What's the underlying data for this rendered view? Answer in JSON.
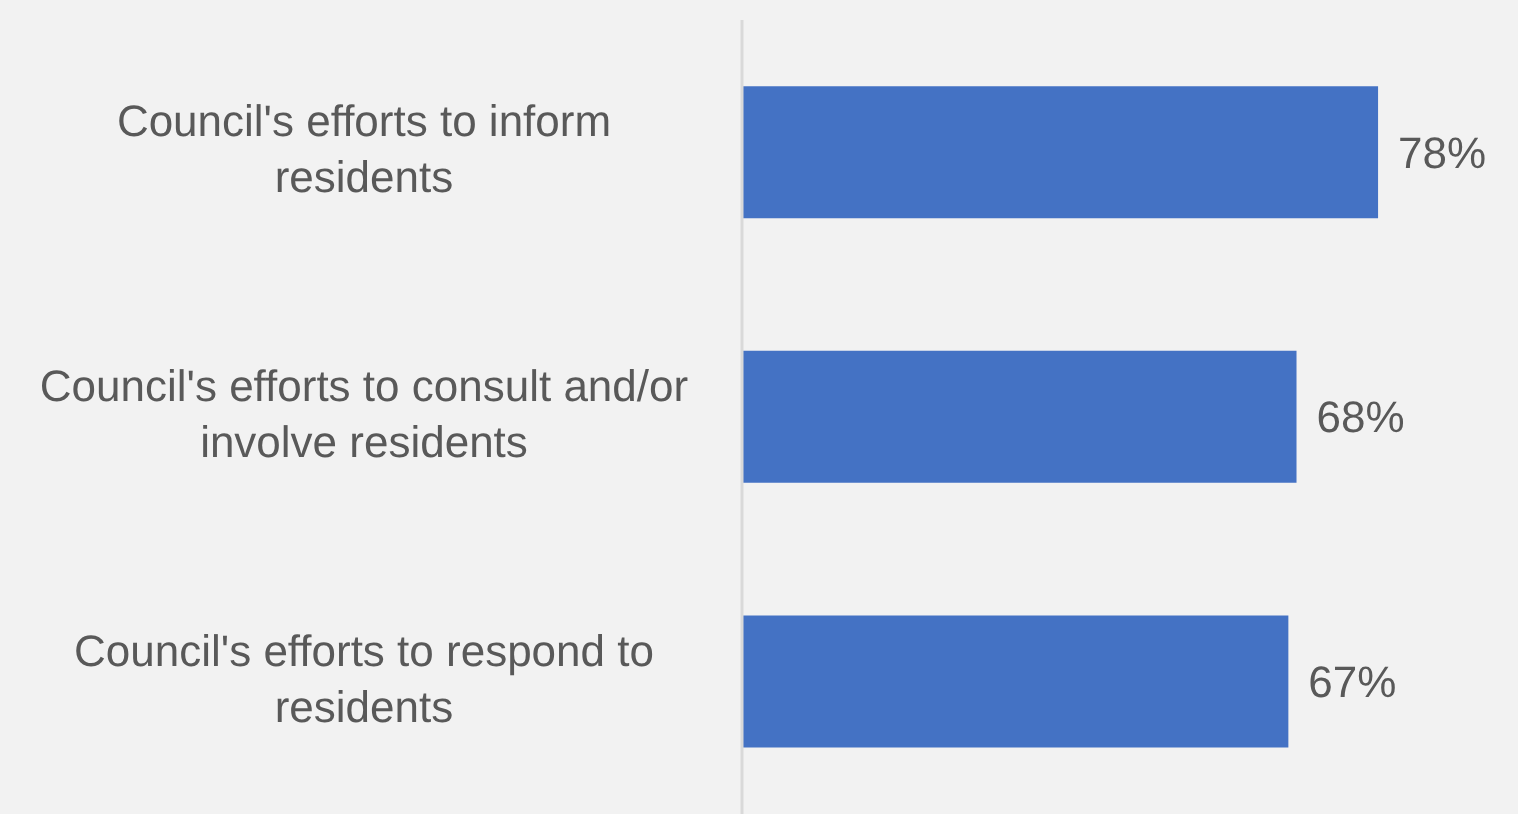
{
  "chart_data": {
    "type": "bar",
    "orientation": "horizontal",
    "categories": [
      "Council's efforts to inform residents",
      "Council's efforts to consult and/or involve residents",
      "Council's efforts to respond to residents"
    ],
    "values": [
      78,
      68,
      67
    ],
    "value_labels": [
      "78%",
      "68%",
      "67%"
    ],
    "color": "#4472c4"
  }
}
